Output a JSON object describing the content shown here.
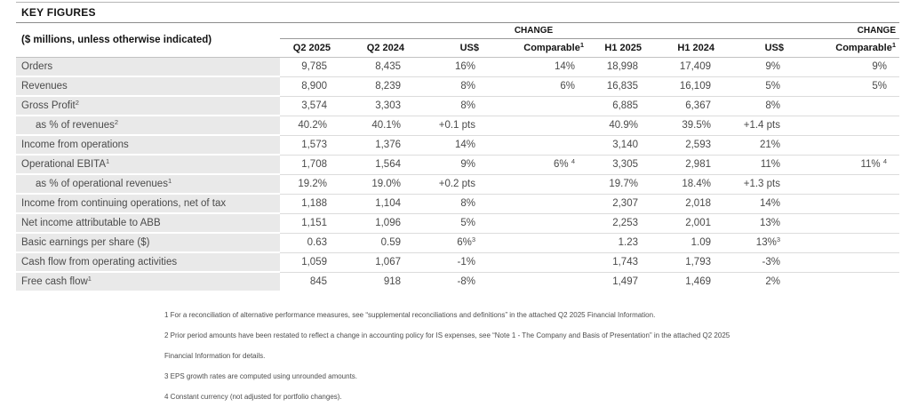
{
  "title": "KEY FIGURES",
  "table": {
    "row_header": "($ millions, unless otherwise indicated)",
    "change_label": "CHANGE",
    "columns": {
      "q2_2025": "Q2 2025",
      "q2_2024": "Q2 2024",
      "usd": "US$",
      "comparable": "Comparable",
      "comparable_sup": "1",
      "h1_2025": "H1 2025",
      "h1_2024": "H1 2024"
    },
    "rows": [
      {
        "label": "Orders",
        "indent": false,
        "cells": [
          "9,785",
          "8,435",
          "16%",
          "14%",
          "18,998",
          "17,409",
          "9%",
          "9%"
        ]
      },
      {
        "label": "Revenues",
        "indent": false,
        "cells": [
          "8,900",
          "8,239",
          "8%",
          "6%",
          "16,835",
          "16,109",
          "5%",
          "5%"
        ]
      },
      {
        "label": "Gross Profit^2",
        "indent": false,
        "cells": [
          "3,574",
          "3,303",
          "8%",
          "",
          "6,885",
          "6,367",
          "8%",
          ""
        ]
      },
      {
        "label": "as % of revenues^2",
        "indent": true,
        "cells": [
          "40.2%",
          "40.1%",
          "+0.1 pts",
          "",
          "40.9%",
          "39.5%",
          "+1.4 pts",
          ""
        ]
      },
      {
        "label": "Income from operations",
        "indent": false,
        "cells": [
          "1,573",
          "1,376",
          "14%",
          "",
          "3,140",
          "2,593",
          "21%",
          ""
        ]
      },
      {
        "label": "Operational EBITA^1",
        "indent": false,
        "cells": [
          "1,708",
          "1,564",
          "9%",
          "6% ^4",
          "3,305",
          "2,981",
          "11%",
          "11% ^4"
        ]
      },
      {
        "label": "as % of operational revenues^1",
        "indent": true,
        "cells": [
          "19.2%",
          "19.0%",
          "+0.2 pts",
          "",
          "19.7%",
          "18.4%",
          "+1.3 pts",
          ""
        ]
      },
      {
        "label": "Income from continuing operations, net of tax",
        "indent": false,
        "cells": [
          "1,188",
          "1,104",
          "8%",
          "",
          "2,307",
          "2,018",
          "14%",
          ""
        ]
      },
      {
        "label": "Net income attributable to ABB",
        "indent": false,
        "cells": [
          "1,151",
          "1,096",
          "5%",
          "",
          "2,253",
          "2,001",
          "13%",
          ""
        ]
      },
      {
        "label": "Basic earnings per share ($)",
        "indent": false,
        "cells": [
          "0.63",
          "0.59",
          "6%^3",
          "",
          "1.23",
          "1.09",
          "13%^3",
          ""
        ]
      },
      {
        "label": "Cash flow from operating activities",
        "indent": false,
        "cells": [
          "1,059",
          "1,067",
          "-1%",
          "",
          "1,743",
          "1,793",
          "-3%",
          ""
        ]
      },
      {
        "label": "Free cash flow^1",
        "indent": false,
        "cells": [
          "845",
          "918",
          "-8%",
          "",
          "1,497",
          "1,469",
          "2%",
          ""
        ]
      }
    ]
  },
  "footnotes": [
    "1 For a reconciliation of alternative performance measures, see “supplemental reconciliations and definitions” in the attached Q2 2025 Financial Information.",
    "2 Prior period amounts have been restated to reflect a change in accounting policy for IS expenses, see “Note 1 - The Company and Basis of Presentation” in the attached Q2 2025 Financial Information for details.",
    "3 EPS growth rates are computed using unrounded amounts.",
    "4 Constant currency (not adjusted for portfolio changes)."
  ]
}
